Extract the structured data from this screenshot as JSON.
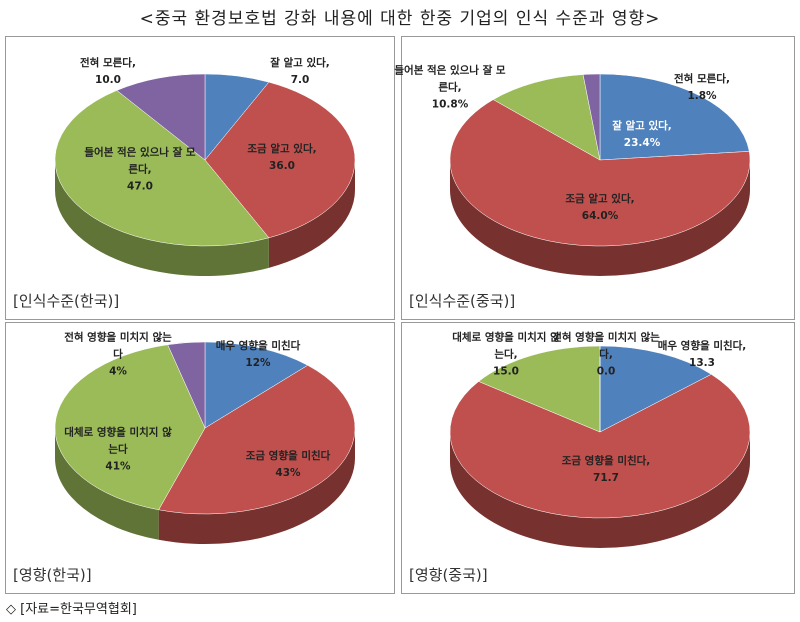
{
  "title": "<중국 환경보호법 강화 내용에 대한 한중 기업의 인식 수준과 영향>",
  "source": "◇ [자료=한국무역협회]",
  "chart_data": [
    {
      "type": "pie",
      "title": "[인식수준(한국)]",
      "categories": [
        "잘 알고 있다,",
        "조금 알고 있다,",
        "들어본 적은 있으나 잘 모른다,",
        "전혀 모른다,"
      ],
      "values": [
        7.0,
        36.0,
        47.0,
        10.0
      ],
      "value_labels": [
        "7.0",
        "36.0",
        "47.0",
        "10.0"
      ],
      "colors": [
        "#4f81bd",
        "#c0504d",
        "#9bbb59",
        "#8064a2"
      ]
    },
    {
      "type": "pie",
      "title": "[인식수준(중국)]",
      "categories": [
        "잘 알고 있다,",
        "조금 알고 있다,",
        "들어본 적은 있으나 잘 모른다,",
        "전혀 모른다,"
      ],
      "values": [
        23.4,
        64.0,
        10.8,
        1.8
      ],
      "value_labels": [
        "23.4%",
        "64.0%",
        "10.8%",
        "1.8%"
      ],
      "colors": [
        "#4f81bd",
        "#c0504d",
        "#9bbb59",
        "#8064a2"
      ]
    },
    {
      "type": "pie",
      "title": "[영향(한국)]",
      "categories": [
        "매우 영향을 미친다",
        "조금 영향을 미친다",
        "대체로 영향을 미치지 않는다",
        "전혀 영향을 미치지 않는다"
      ],
      "values": [
        12,
        43,
        41,
        4
      ],
      "value_labels": [
        "12%",
        "43%",
        "41%",
        "4%"
      ],
      "colors": [
        "#4f81bd",
        "#c0504d",
        "#9bbb59",
        "#8064a2"
      ]
    },
    {
      "type": "pie",
      "title": "[영향(중국)]",
      "categories": [
        "매우 영향을 미친다,",
        "조금 영향을 미친다,",
        "대체로 영향을 미치지 않는다,",
        "전혀 영향을 미치지 않는다,"
      ],
      "values": [
        13.3,
        71.7,
        15.0,
        0.0
      ],
      "value_labels": [
        "13.3",
        "71.7",
        "15.0",
        "0.0"
      ],
      "colors": [
        "#4f81bd",
        "#c0504d",
        "#9bbb59",
        "#8064a2"
      ]
    }
  ]
}
